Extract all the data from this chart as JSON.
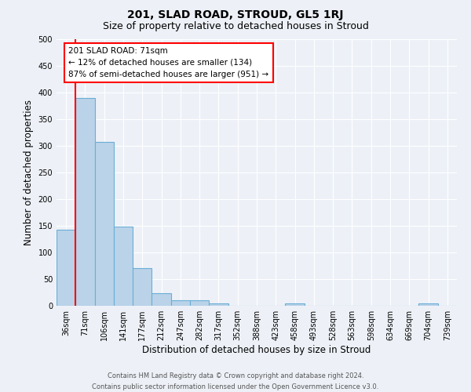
{
  "title": "201, SLAD ROAD, STROUD, GL5 1RJ",
  "subtitle": "Size of property relative to detached houses in Stroud",
  "xlabel": "Distribution of detached houses by size in Stroud",
  "ylabel": "Number of detached properties",
  "footer_line1": "Contains HM Land Registry data © Crown copyright and database right 2024.",
  "footer_line2": "Contains public sector information licensed under the Open Government Licence v3.0.",
  "categories": [
    "36sqm",
    "71sqm",
    "106sqm",
    "141sqm",
    "177sqm",
    "212sqm",
    "247sqm",
    "282sqm",
    "317sqm",
    "352sqm",
    "388sqm",
    "423sqm",
    "458sqm",
    "493sqm",
    "528sqm",
    "563sqm",
    "598sqm",
    "634sqm",
    "669sqm",
    "704sqm",
    "739sqm"
  ],
  "values": [
    143,
    390,
    308,
    148,
    70,
    23,
    10,
    10,
    5,
    0,
    0,
    0,
    5,
    0,
    0,
    0,
    0,
    0,
    0,
    4,
    0
  ],
  "bar_color": "#bad3e8",
  "bar_edge_color": "#6aaed6",
  "bar_edge_width": 0.8,
  "annotation_text_line1": "201 SLAD ROAD: 71sqm",
  "annotation_text_line2": "← 12% of detached houses are smaller (134)",
  "annotation_text_line3": "87% of semi-detached houses are larger (951) →",
  "red_line_x": 1,
  "ylim": [
    0,
    500
  ],
  "yticks": [
    0,
    50,
    100,
    150,
    200,
    250,
    300,
    350,
    400,
    450,
    500
  ],
  "bg_color": "#edf1f7",
  "grid_color": "#ffffff",
  "title_fontsize": 10,
  "subtitle_fontsize": 9,
  "axis_label_fontsize": 8.5,
  "tick_fontsize": 7,
  "footer_fontsize": 6,
  "annotation_fontsize": 7.5
}
